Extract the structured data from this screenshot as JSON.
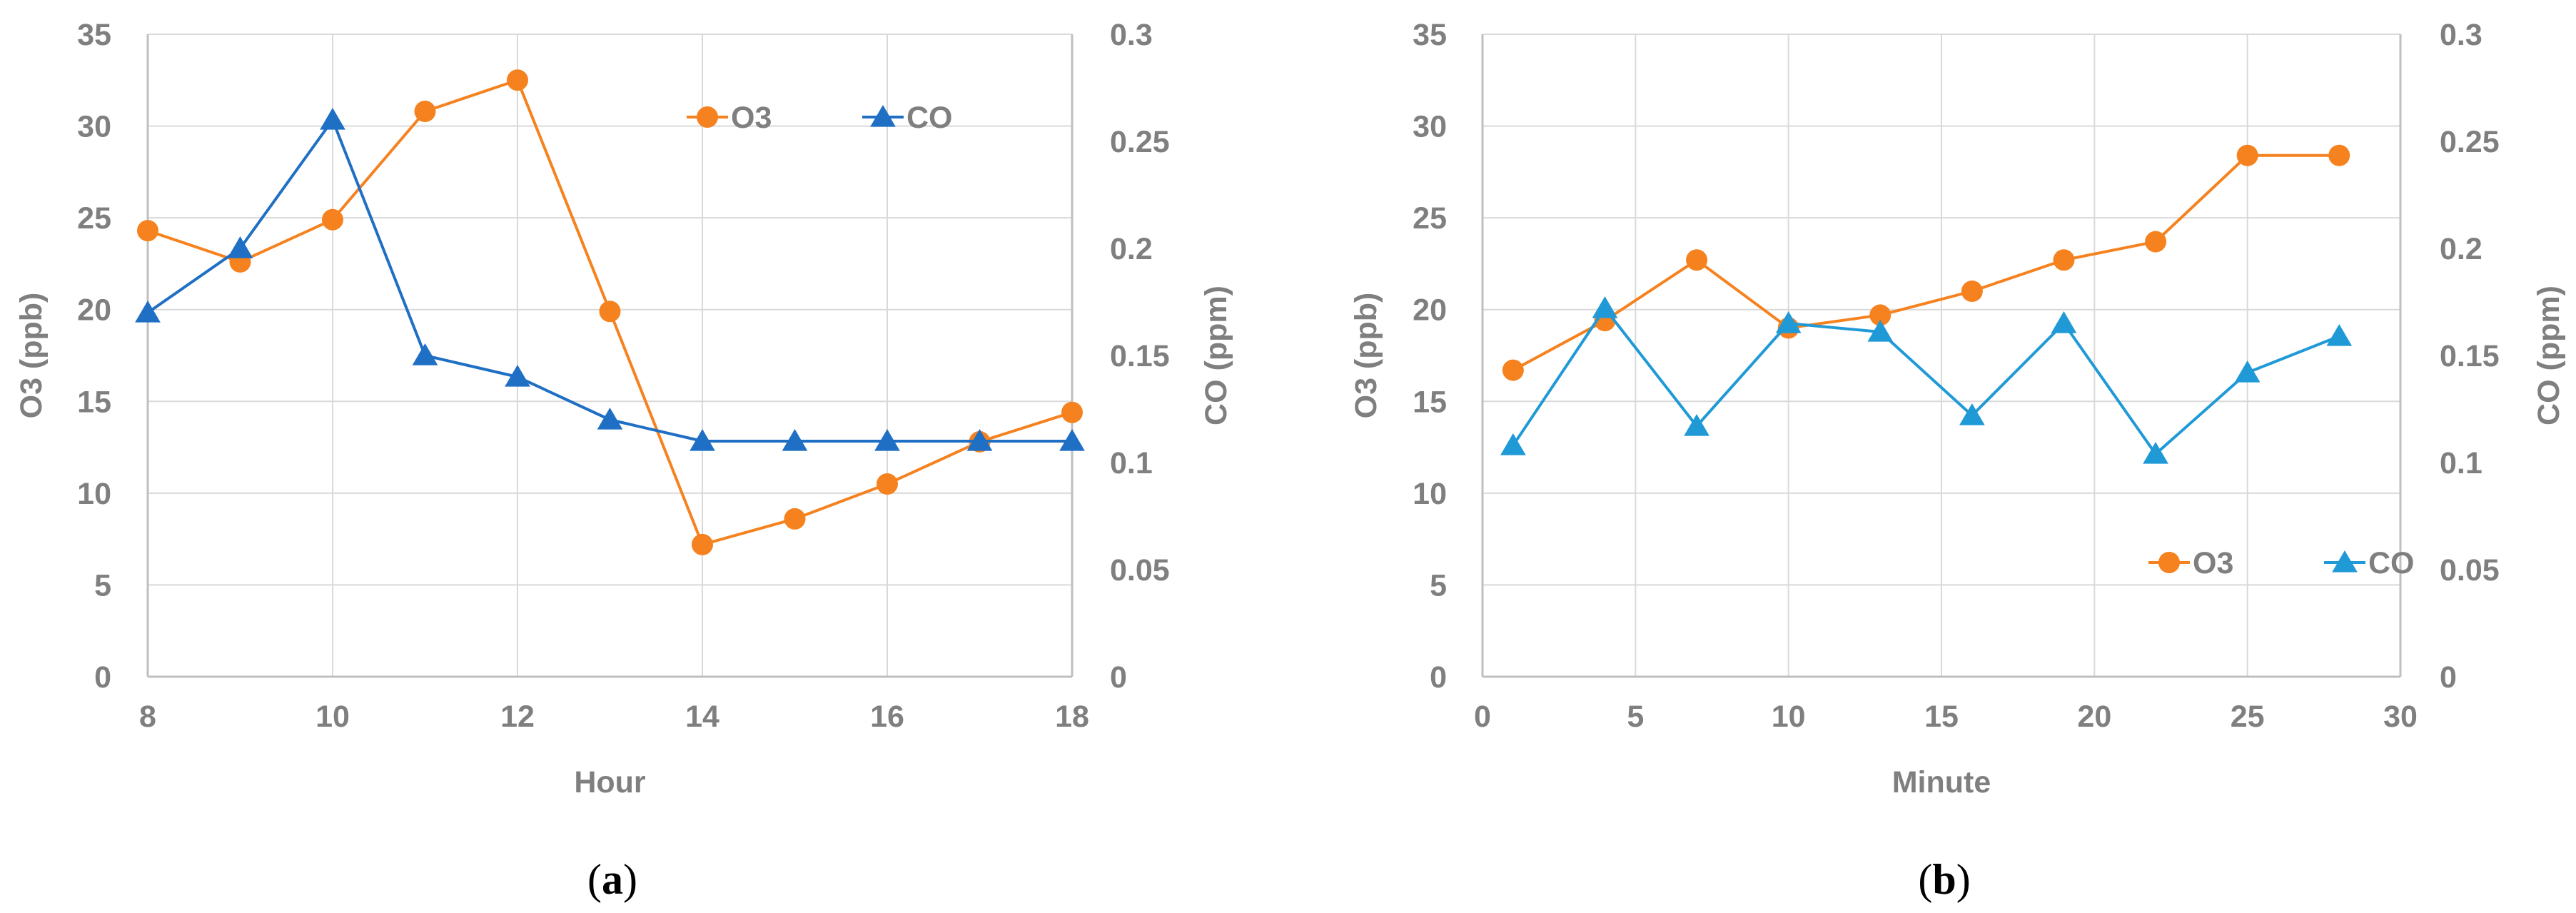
{
  "chart_data": [
    {
      "type": "line",
      "caption": "(a)",
      "caption_letter": "a",
      "x": [
        8,
        9,
        10,
        11,
        12,
        13,
        14,
        15,
        16,
        17,
        18
      ],
      "xlabel": "Hour",
      "xlim": [
        8,
        18
      ],
      "xticks": [
        8,
        10,
        12,
        14,
        16,
        18
      ],
      "x_gridlines": true,
      "ylabel": "O3 (ppb)",
      "ylim": [
        0,
        35
      ],
      "yticks": [
        0,
        5,
        10,
        15,
        20,
        25,
        30,
        35
      ],
      "y2label": "CO (ppm)",
      "y2lim": [
        0,
        0.3
      ],
      "y2ticks": [
        0,
        0.05,
        0.1,
        0.15,
        0.2,
        0.25,
        0.3
      ],
      "legend_position": "top-right",
      "series": [
        {
          "name": "O3",
          "axis": "left",
          "marker": "circle",
          "color": "#f5821f",
          "values": [
            24.3,
            22.6,
            24.9,
            30.8,
            32.5,
            19.9,
            7.2,
            8.6,
            10.5,
            12.8,
            14.4
          ]
        },
        {
          "name": "CO",
          "axis": "right",
          "marker": "triangle",
          "color": "#1f6fc4",
          "values": [
            0.17,
            0.2,
            0.26,
            0.15,
            0.14,
            0.12,
            0.11,
            0.11,
            0.11,
            0.11,
            0.11
          ]
        }
      ]
    },
    {
      "type": "line",
      "caption": "(b)",
      "caption_letter": "b",
      "x": [
        1,
        4,
        7,
        10,
        13,
        16,
        19,
        22,
        25,
        28
      ],
      "xlabel": "Minute",
      "xlim": [
        0,
        30
      ],
      "xticks": [
        0,
        5,
        10,
        15,
        20,
        25,
        30
      ],
      "x_gridlines": true,
      "ylabel": "O3 (ppb)",
      "ylim": [
        0,
        35
      ],
      "yticks": [
        0,
        5,
        10,
        15,
        20,
        25,
        30,
        35
      ],
      "y2label": "CO (ppm)",
      "y2lim": [
        0,
        0.3
      ],
      "y2ticks": [
        0,
        0.05,
        0.1,
        0.15,
        0.2,
        0.25,
        0.3
      ],
      "legend_position": "bottom-right",
      "series": [
        {
          "name": "O3",
          "axis": "left",
          "marker": "circle",
          "color": "#f5821f",
          "values": [
            16.7,
            19.4,
            22.7,
            19.0,
            19.7,
            21.0,
            22.7,
            23.7,
            28.4,
            28.4
          ]
        },
        {
          "name": "CO",
          "axis": "right",
          "marker": "triangle",
          "color": "#1f9ad6",
          "values": [
            0.108,
            0.172,
            0.117,
            0.165,
            0.161,
            0.122,
            0.165,
            0.104,
            0.142,
            0.159
          ]
        }
      ]
    }
  ]
}
